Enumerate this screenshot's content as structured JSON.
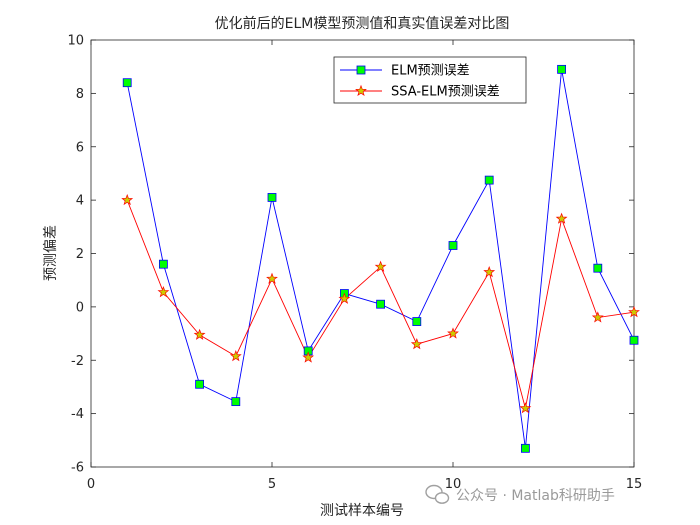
{
  "chart_data": {
    "type": "line",
    "title": "优化前后的ELM模型预测值和真实值误差对比图",
    "xlabel": "测试样本编号",
    "ylabel": "预测偏差",
    "xlim": [
      0,
      15
    ],
    "ylim": [
      -6,
      10
    ],
    "xticks": [
      0,
      5,
      10,
      15
    ],
    "yticks": [
      -6,
      -4,
      -2,
      0,
      2,
      4,
      6,
      8,
      10
    ],
    "x": [
      1,
      2,
      3,
      4,
      5,
      6,
      7,
      8,
      9,
      10,
      11,
      12,
      13,
      14,
      15
    ],
    "series": [
      {
        "name": "ELM预测误差",
        "color": "#0000ff",
        "marker": "square",
        "marker_fill": "#00ff00",
        "values": [
          8.4,
          1.6,
          -2.9,
          -3.55,
          4.1,
          -1.65,
          0.5,
          0.1,
          -0.55,
          2.3,
          4.75,
          -5.3,
          8.9,
          1.45,
          -1.25
        ]
      },
      {
        "name": "SSA-ELM预测误差",
        "color": "#ff0000",
        "marker": "star",
        "marker_fill": "#cccc00",
        "values": [
          4.0,
          0.55,
          -1.05,
          -1.85,
          1.05,
          -1.9,
          0.3,
          1.5,
          -1.4,
          -1.0,
          1.3,
          -3.8,
          3.3,
          -0.4,
          -0.2
        ]
      }
    ],
    "grid": false,
    "legend_position": "top-right"
  },
  "watermark": {
    "text": "公众号 · Matlab科研助手"
  }
}
